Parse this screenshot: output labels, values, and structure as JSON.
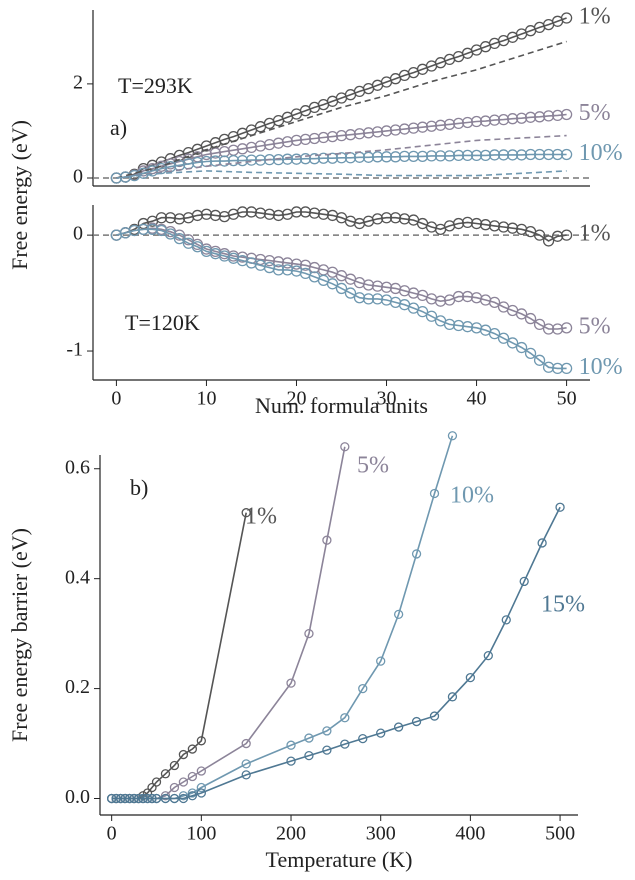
{
  "chart_data": [
    {
      "type": "line",
      "ylabel": "Free energy (eV)",
      "annotations": [
        "T=293K",
        "a)"
      ],
      "xlim": [
        -2.6,
        52.6
      ],
      "ylim": [
        -0.17,
        3.57
      ],
      "yticks": [
        0,
        2
      ],
      "hline": 0,
      "x": [
        0,
        1,
        2,
        3,
        4,
        5,
        6,
        7,
        8,
        9,
        10,
        11,
        12,
        13,
        14,
        15,
        16,
        17,
        18,
        19,
        20,
        21,
        22,
        23,
        24,
        25,
        26,
        27,
        28,
        29,
        30,
        31,
        32,
        33,
        34,
        35,
        36,
        37,
        38,
        39,
        40,
        41,
        42,
        43,
        44,
        45,
        46,
        47,
        48,
        49,
        50
      ],
      "series": [
        {
          "name": "1%",
          "color": "#555555",
          "values": [
            0,
            0.02,
            0.08,
            0.2,
            0.27,
            0.34,
            0.41,
            0.48,
            0.54,
            0.61,
            0.68,
            0.75,
            0.82,
            0.88,
            0.95,
            1.02,
            1.09,
            1.16,
            1.22,
            1.29,
            1.36,
            1.43,
            1.5,
            1.56,
            1.63,
            1.7,
            1.77,
            1.84,
            1.9,
            1.97,
            2.04,
            2.11,
            2.18,
            2.24,
            2.31,
            2.38,
            2.45,
            2.52,
            2.58,
            2.65,
            2.72,
            2.79,
            2.86,
            2.92,
            2.99,
            3.06,
            3.13,
            3.2,
            3.26,
            3.33,
            3.4
          ]
        },
        {
          "name": "5%",
          "color": "#8c8499",
          "values": [
            0,
            0.02,
            0.06,
            0.15,
            0.2,
            0.25,
            0.3,
            0.35,
            0.4,
            0.45,
            0.5,
            0.53,
            0.56,
            0.59,
            0.62,
            0.65,
            0.68,
            0.71,
            0.74,
            0.77,
            0.8,
            0.82,
            0.84,
            0.86,
            0.88,
            0.9,
            0.92,
            0.94,
            0.96,
            0.98,
            1.0,
            1.02,
            1.04,
            1.06,
            1.08,
            1.1,
            1.12,
            1.14,
            1.16,
            1.18,
            1.2,
            1.21,
            1.23,
            1.24,
            1.26,
            1.27,
            1.29,
            1.3,
            1.32,
            1.33,
            1.35
          ]
        },
        {
          "name": "10%",
          "color": "#6f98b0",
          "values": [
            0,
            0.02,
            0.05,
            0.1,
            0.15,
            0.2,
            0.24,
            0.27,
            0.3,
            0.33,
            0.35,
            0.36,
            0.36,
            0.37,
            0.37,
            0.38,
            0.38,
            0.39,
            0.39,
            0.4,
            0.4,
            0.41,
            0.41,
            0.42,
            0.42,
            0.43,
            0.43,
            0.44,
            0.44,
            0.45,
            0.45,
            0.45,
            0.46,
            0.46,
            0.46,
            0.47,
            0.47,
            0.47,
            0.48,
            0.48,
            0.48,
            0.48,
            0.49,
            0.49,
            0.49,
            0.49,
            0.5,
            0.5,
            0.5,
            0.5,
            0.5
          ]
        },
        {
          "color": "#555555",
          "dashed": true,
          "x": [
            0,
            5,
            10,
            15,
            20,
            25,
            30,
            35,
            40,
            45,
            50
          ],
          "values": [
            0,
            0.25,
            0.6,
            0.9,
            1.2,
            1.5,
            1.75,
            2.05,
            2.3,
            2.6,
            2.9
          ]
        },
        {
          "color": "#8c8499",
          "dashed": true,
          "x": [
            0,
            5,
            10,
            15,
            20,
            25,
            30,
            35,
            40,
            45,
            50
          ],
          "values": [
            0,
            0.12,
            0.25,
            0.35,
            0.45,
            0.52,
            0.6,
            0.7,
            0.8,
            0.85,
            0.9
          ]
        },
        {
          "color": "#6f98b0",
          "dashed": true,
          "x": [
            0,
            5,
            10,
            15,
            20,
            25,
            30,
            35,
            40,
            45,
            50
          ],
          "values": [
            0,
            0.1,
            0.15,
            0.12,
            0.1,
            0.08,
            0.05,
            0.05,
            0.05,
            0.1,
            0.15
          ]
        }
      ]
    },
    {
      "type": "line",
      "xlabel": "Num. formula units",
      "annotations": [
        "T=120K"
      ],
      "xlim": [
        -2.6,
        52.6
      ],
      "ylim": [
        -1.25,
        0.26
      ],
      "xticks": [
        0,
        10,
        20,
        30,
        40,
        50
      ],
      "yticks": [
        -1,
        0
      ],
      "hline": 0,
      "x": [
        0,
        1,
        2,
        3,
        4,
        5,
        6,
        7,
        8,
        9,
        10,
        11,
        12,
        13,
        14,
        15,
        16,
        17,
        18,
        19,
        20,
        21,
        22,
        23,
        24,
        25,
        26,
        27,
        28,
        29,
        30,
        31,
        32,
        33,
        34,
        35,
        36,
        37,
        38,
        39,
        40,
        41,
        42,
        43,
        44,
        45,
        46,
        47,
        48,
        49,
        50
      ],
      "series": [
        {
          "name": "1%",
          "color": "#555555",
          "values": [
            0,
            0.02,
            0.05,
            0.1,
            0.12,
            0.15,
            0.15,
            0.14,
            0.15,
            0.17,
            0.18,
            0.17,
            0.16,
            0.18,
            0.2,
            0.2,
            0.19,
            0.18,
            0.17,
            0.18,
            0.2,
            0.2,
            0.19,
            0.18,
            0.17,
            0.15,
            0.12,
            0.1,
            0.12,
            0.14,
            0.15,
            0.15,
            0.14,
            0.13,
            0.1,
            0.07,
            0.05,
            0.08,
            0.1,
            0.11,
            0.1,
            0.09,
            0.08,
            0.07,
            0.06,
            0.05,
            0.03,
            0.0,
            -0.05,
            -0.01,
            0.0
          ]
        },
        {
          "name": "5%",
          "color": "#8c8499",
          "values": [
            0,
            0.02,
            0.04,
            0.05,
            0.06,
            0.05,
            0.03,
            0.0,
            -0.04,
            -0.08,
            -0.12,
            -0.14,
            -0.16,
            -0.18,
            -0.19,
            -0.2,
            -0.21,
            -0.22,
            -0.23,
            -0.24,
            -0.25,
            -0.26,
            -0.28,
            -0.3,
            -0.32,
            -0.35,
            -0.38,
            -0.41,
            -0.43,
            -0.44,
            -0.45,
            -0.46,
            -0.48,
            -0.5,
            -0.52,
            -0.55,
            -0.57,
            -0.56,
            -0.53,
            -0.53,
            -0.54,
            -0.56,
            -0.58,
            -0.62,
            -0.65,
            -0.68,
            -0.72,
            -0.77,
            -0.81,
            -0.81,
            -0.8
          ]
        },
        {
          "name": "10%",
          "color": "#6f98b0",
          "values": [
            0,
            0.02,
            0.04,
            0.05,
            0.05,
            0.04,
            0.01,
            -0.03,
            -0.07,
            -0.1,
            -0.14,
            -0.16,
            -0.18,
            -0.2,
            -0.22,
            -0.24,
            -0.26,
            -0.28,
            -0.3,
            -0.3,
            -0.31,
            -0.33,
            -0.36,
            -0.39,
            -0.42,
            -0.46,
            -0.5,
            -0.54,
            -0.55,
            -0.55,
            -0.56,
            -0.58,
            -0.6,
            -0.63,
            -0.66,
            -0.7,
            -0.74,
            -0.77,
            -0.78,
            -0.79,
            -0.8,
            -0.82,
            -0.85,
            -0.89,
            -0.93,
            -0.97,
            -1.02,
            -1.08,
            -1.14,
            -1.15,
            -1.15
          ]
        }
      ]
    },
    {
      "type": "line",
      "xlabel": "Temperature (K)",
      "ylabel": "Free energy barrier (eV)",
      "annotations": [
        "b)"
      ],
      "xlim": [
        -13,
        520
      ],
      "ylim": [
        -0.03,
        0.625
      ],
      "xticks": [
        0,
        100,
        200,
        300,
        400,
        500
      ],
      "yticks": [
        {
          "value": 0,
          "label": "0.0"
        },
        0.2,
        0.4,
        0.6
      ],
      "series": [
        {
          "name": "1%",
          "color": "#555555",
          "x": [
            0,
            5,
            10,
            15,
            20,
            25,
            30,
            35,
            40,
            45,
            50,
            60,
            70,
            80,
            90,
            100,
            150
          ],
          "values": [
            0,
            0,
            0,
            0,
            0,
            0,
            0,
            0.005,
            0.01,
            0.02,
            0.03,
            0.045,
            0.06,
            0.08,
            0.09,
            0.105,
            0.52
          ]
        },
        {
          "name": "5%",
          "color": "#8c8499",
          "x": [
            0,
            5,
            10,
            15,
            20,
            25,
            30,
            35,
            40,
            45,
            50,
            60,
            70,
            80,
            90,
            100,
            150,
            200,
            220,
            240,
            260
          ],
          "values": [
            0,
            0,
            0,
            0,
            0,
            0,
            0,
            0,
            0,
            0,
            0,
            0.005,
            0.02,
            0.03,
            0.04,
            0.05,
            0.1,
            0.21,
            0.3,
            0.47,
            0.64
          ]
        },
        {
          "name": "10%",
          "color": "#6f98b0",
          "x": [
            0,
            5,
            10,
            15,
            20,
            25,
            30,
            35,
            40,
            45,
            50,
            60,
            70,
            80,
            90,
            100,
            150,
            200,
            220,
            240,
            260,
            280,
            300,
            320,
            340,
            360,
            380
          ],
          "values": [
            0,
            0,
            0,
            0,
            0,
            0,
            0,
            0,
            0,
            0,
            0,
            0,
            0,
            0.005,
            0.01,
            0.02,
            0.063,
            0.097,
            0.11,
            0.123,
            0.147,
            0.2,
            0.25,
            0.335,
            0.445,
            0.555,
            0.66
          ]
        },
        {
          "name": "15%",
          "color": "#4f7893",
          "x": [
            0,
            5,
            10,
            15,
            20,
            25,
            30,
            35,
            40,
            45,
            50,
            60,
            70,
            80,
            90,
            100,
            150,
            200,
            220,
            240,
            260,
            280,
            300,
            320,
            340,
            360,
            380,
            400,
            420,
            440,
            460,
            480,
            500
          ],
          "values": [
            0,
            0,
            0,
            0,
            0,
            0,
            0,
            0,
            0,
            0,
            0,
            0,
            0,
            0,
            0.005,
            0.01,
            0.043,
            0.068,
            0.078,
            0.088,
            0.099,
            0.109,
            0.119,
            0.13,
            0.14,
            0.15,
            0.185,
            0.22,
            0.26,
            0.325,
            0.395,
            0.465,
            0.53
          ]
        }
      ]
    }
  ]
}
